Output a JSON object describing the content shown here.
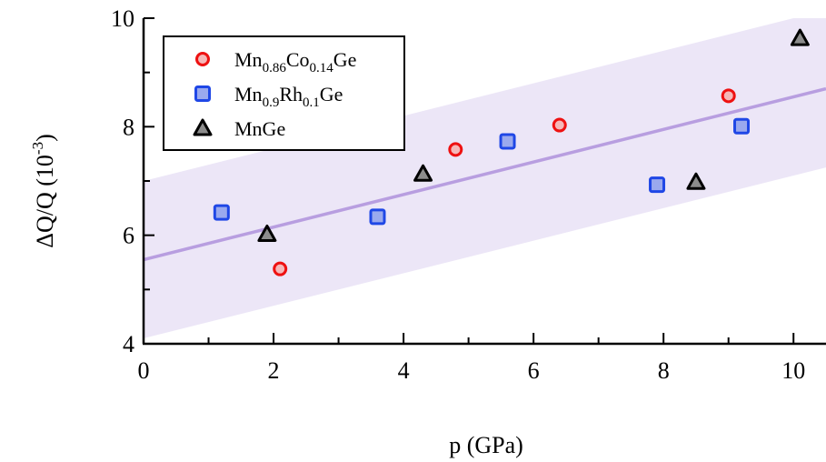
{
  "chart_data": {
    "type": "scatter",
    "title": "",
    "xlabel": "p (GPa)",
    "ylabel_main": "ΔQ/Q (10",
    "ylabel_exp": "-3",
    "ylabel_close": ")",
    "xlim": [
      0,
      10.5
    ],
    "ylim": [
      4,
      10
    ],
    "x_ticks": [
      0,
      2,
      4,
      6,
      8,
      10
    ],
    "y_ticks": [
      4,
      6,
      8,
      10
    ],
    "x_tick_labels": [
      "0",
      "2",
      "4",
      "6",
      "8",
      "10"
    ],
    "y_tick_labels": [
      "4",
      "6",
      "8",
      "10"
    ],
    "grid": false,
    "legend_position": "top-left",
    "fit_line": {
      "intercept": 5.55,
      "slope": 0.3,
      "band_halfwidth": 1.45,
      "color": "#b89ee0",
      "band_color": "#ece6f7"
    },
    "series": [
      {
        "legend": {
          "base": "Mn",
          "sub1": "0.86",
          "mid": "Co",
          "sub2": "0.14",
          "tail": "Ge"
        },
        "marker": "circle",
        "color": "#ee1111",
        "fill": "#f5b8b8",
        "x": [
          2.1,
          4.8,
          6.4,
          9.0
        ],
        "y": [
          5.38,
          7.58,
          8.03,
          8.57
        ]
      },
      {
        "legend": {
          "base": "Mn",
          "sub1": "0.9",
          "mid": "Rh",
          "sub2": "0.1",
          "tail": "Ge"
        },
        "marker": "square",
        "color": "#1f47e6",
        "fill": "#9aa9ee",
        "x": [
          1.2,
          3.6,
          5.6,
          7.9,
          9.2
        ],
        "y": [
          6.42,
          6.34,
          7.73,
          6.93,
          8.01
        ]
      },
      {
        "legend": {
          "base": "MnGe",
          "sub1": "",
          "mid": "",
          "sub2": "",
          "tail": ""
        },
        "marker": "triangle",
        "color": "#000000",
        "fill": "#8c8c8c",
        "x": [
          1.9,
          4.3,
          8.5,
          10.1
        ],
        "y": [
          6.02,
          7.13,
          6.98,
          9.63
        ]
      }
    ]
  }
}
